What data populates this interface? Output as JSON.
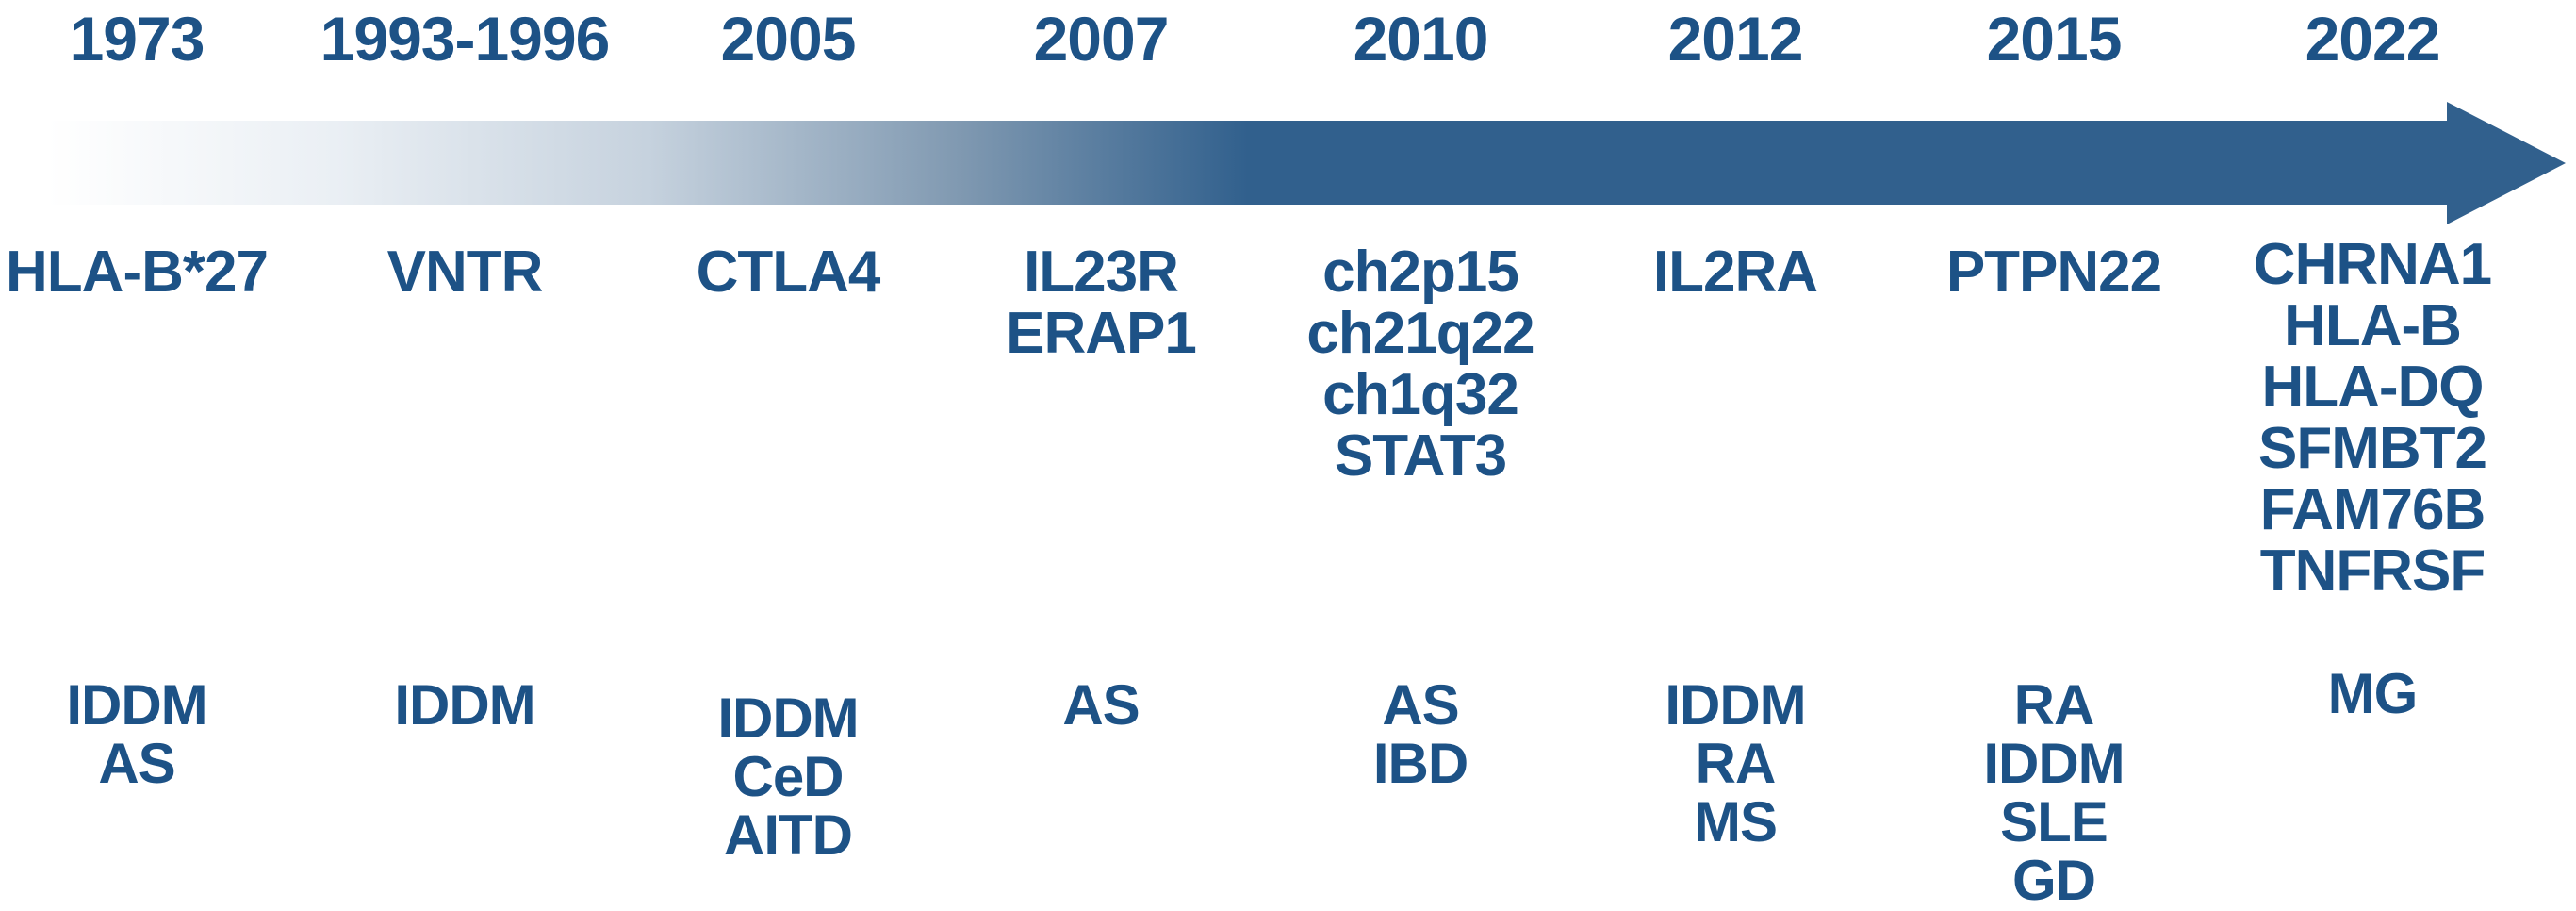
{
  "colors": {
    "label_text": "#1d5286",
    "arrow_solid": "#31608d",
    "arrow_fade_start": "#ffffff"
  },
  "timeline": {
    "columns": [
      {
        "year": "1973",
        "genes": [
          "HLA-B*27"
        ],
        "diseases": [
          "IDDM",
          "AS"
        ]
      },
      {
        "year": "1993-1996",
        "genes": [
          "VNTR"
        ],
        "diseases": [
          "IDDM"
        ]
      },
      {
        "year": "2005",
        "genes": [
          "CTLA4"
        ],
        "diseases": [
          "IDDM",
          "CeD",
          "AITD"
        ]
      },
      {
        "year": "2007",
        "genes": [
          "IL23R",
          "ERAP1"
        ],
        "diseases": [
          "AS"
        ]
      },
      {
        "year": "2010",
        "genes": [
          "ch2p15",
          "ch21q22",
          "ch1q32",
          "STAT3"
        ],
        "diseases": [
          "AS",
          "IBD"
        ]
      },
      {
        "year": "2012",
        "genes": [
          "IL2RA"
        ],
        "diseases": [
          "IDDM",
          "RA",
          "MS"
        ]
      },
      {
        "year": "2015",
        "genes": [
          "PTPN22"
        ],
        "diseases": [
          "RA",
          "IDDM",
          "SLE",
          "GD"
        ]
      },
      {
        "year": "2022",
        "genes": [
          "CHRNA1",
          "HLA-B",
          "HLA-DQ",
          "SFMBT2",
          "FAM76B",
          "TNFRSF"
        ],
        "diseases": [
          "MG"
        ]
      }
    ]
  }
}
